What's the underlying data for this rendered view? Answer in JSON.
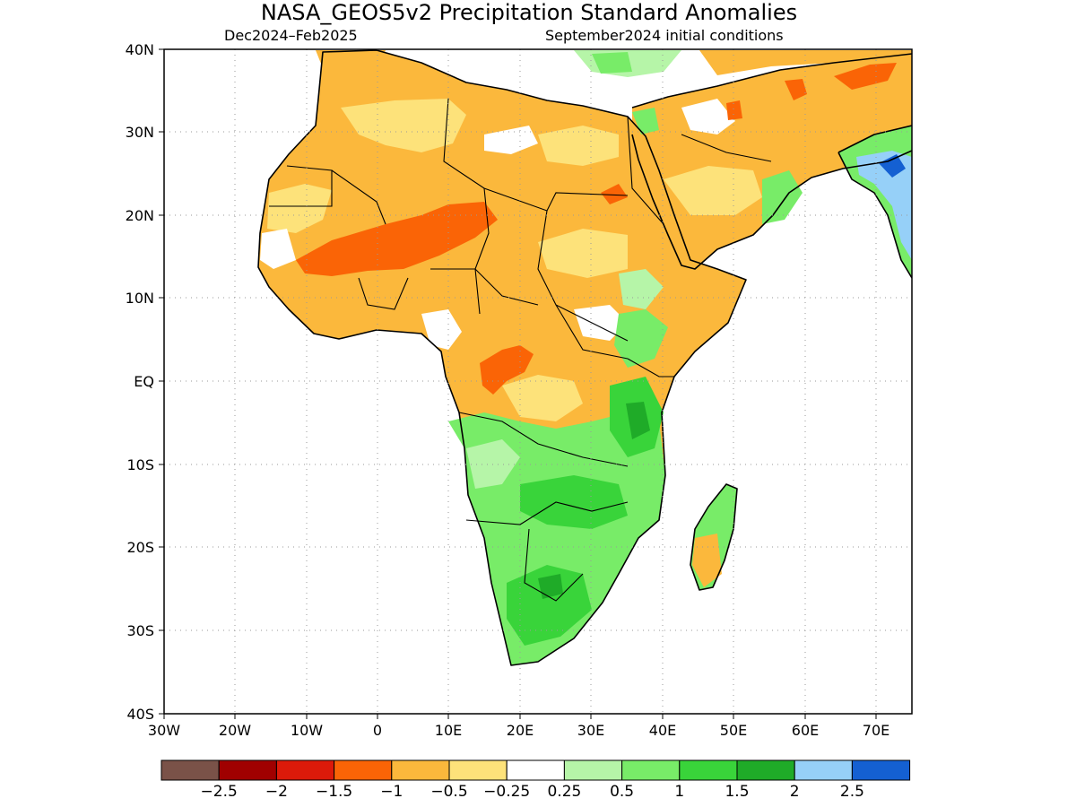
{
  "title": "NASA_GEOS5v2 Precipitation Standard Anomalies",
  "subtitle_left": "Dec2024–Feb2025",
  "subtitle_right": "September2024 initial conditions",
  "latitude_labels": [
    "40N",
    "30N",
    "20N",
    "10N",
    "EQ",
    "10S",
    "20S",
    "30S",
    "40S"
  ],
  "longitude_labels": [
    "30W",
    "20W",
    "10W",
    "0",
    "10E",
    "20E",
    "30E",
    "40E",
    "50E",
    "60E",
    "70E"
  ],
  "colorbar": {
    "labels": [
      "−2.5",
      "−2",
      "−1.5",
      "−1",
      "−0.5",
      "−0.25",
      "0.25",
      "0.5",
      "1",
      "1.5",
      "2",
      "2.5"
    ],
    "colors": [
      "#7a5248",
      "#a00000",
      "#dc1a0a",
      "#fa6406",
      "#fbb83c",
      "#fde27a",
      "#ffffff",
      "#b6f5a8",
      "#78ec68",
      "#39d43a",
      "#1fab28",
      "#96d0f8",
      "#1460d2"
    ]
  },
  "map": {
    "region": "Africa",
    "lon_range": [
      -30,
      75
    ],
    "lat_range": [
      -40,
      40
    ],
    "colors": {
      "dry_strong": "#fa6406",
      "dry_moderate": "#fbb83c",
      "dry_weak": "#fde27a",
      "wet_weak": "#b6f5a8",
      "wet_moderate": "#78ec68",
      "wet_strong": "#39d43a",
      "wet_very_strong": "#1fab28",
      "very_wet_blue": "#96d0f8",
      "extreme_wet_blue": "#1460d2"
    }
  }
}
